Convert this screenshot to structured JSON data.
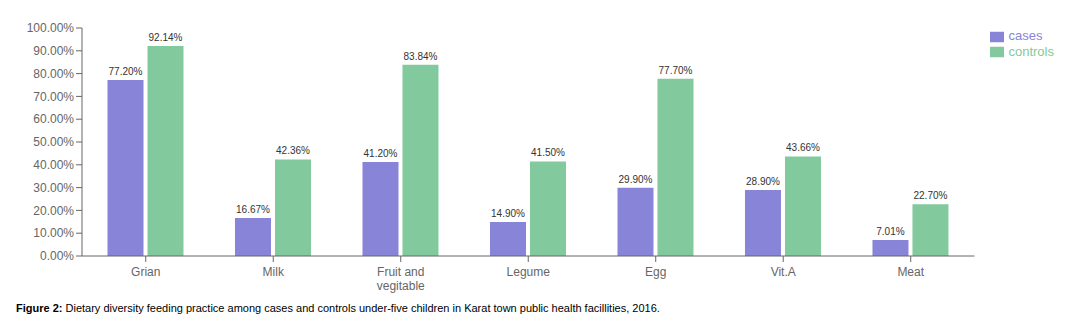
{
  "chart_data": {
    "type": "bar",
    "categories": [
      "Grian",
      "Milk",
      "Fruit and\nvegitable",
      "Legume",
      "Egg",
      "Vit.A",
      "Meat"
    ],
    "series": [
      {
        "name": "cases",
        "color": "#8884d8",
        "values": [
          77.2,
          16.67,
          41.2,
          14.9,
          29.9,
          28.9,
          7.01
        ],
        "value_labels": [
          "77.20%",
          "16.67%",
          "41.20%",
          "14.90%",
          "29.90%",
          "28.90%",
          "7.01%"
        ]
      },
      {
        "name": "controls",
        "color": "#82ca9d",
        "values": [
          92.14,
          42.36,
          83.84,
          41.5,
          77.7,
          43.66,
          22.7
        ],
        "value_labels": [
          "92.14%",
          "42.36%",
          "83.84%",
          "41.50%",
          "77.70%",
          "43.66%",
          "22.70%"
        ]
      }
    ],
    "ylim": [
      0,
      100
    ],
    "yticks": [
      {
        "value": 0,
        "label": "0.00%"
      },
      {
        "value": 10,
        "label": "10.00%"
      },
      {
        "value": 20,
        "label": "20.00%"
      },
      {
        "value": 30,
        "label": "30.00%"
      },
      {
        "value": 40,
        "label": "40.00%"
      },
      {
        "value": 50,
        "label": "50.00%"
      },
      {
        "value": 60,
        "label": "60.00%"
      },
      {
        "value": 70,
        "label": "70.00%"
      },
      {
        "value": 80,
        "label": "80.00%"
      },
      {
        "value": 90,
        "label": "90.00%"
      },
      {
        "value": 100,
        "label": "100.00%"
      }
    ],
    "grid": false,
    "legend": "upper right",
    "data_labels": true,
    "annotations": [
      "Figure 2:",
      "Dietary diversity feeding practice among cases and controls under-five children in Karat town public health facillities, 2016."
    ]
  }
}
